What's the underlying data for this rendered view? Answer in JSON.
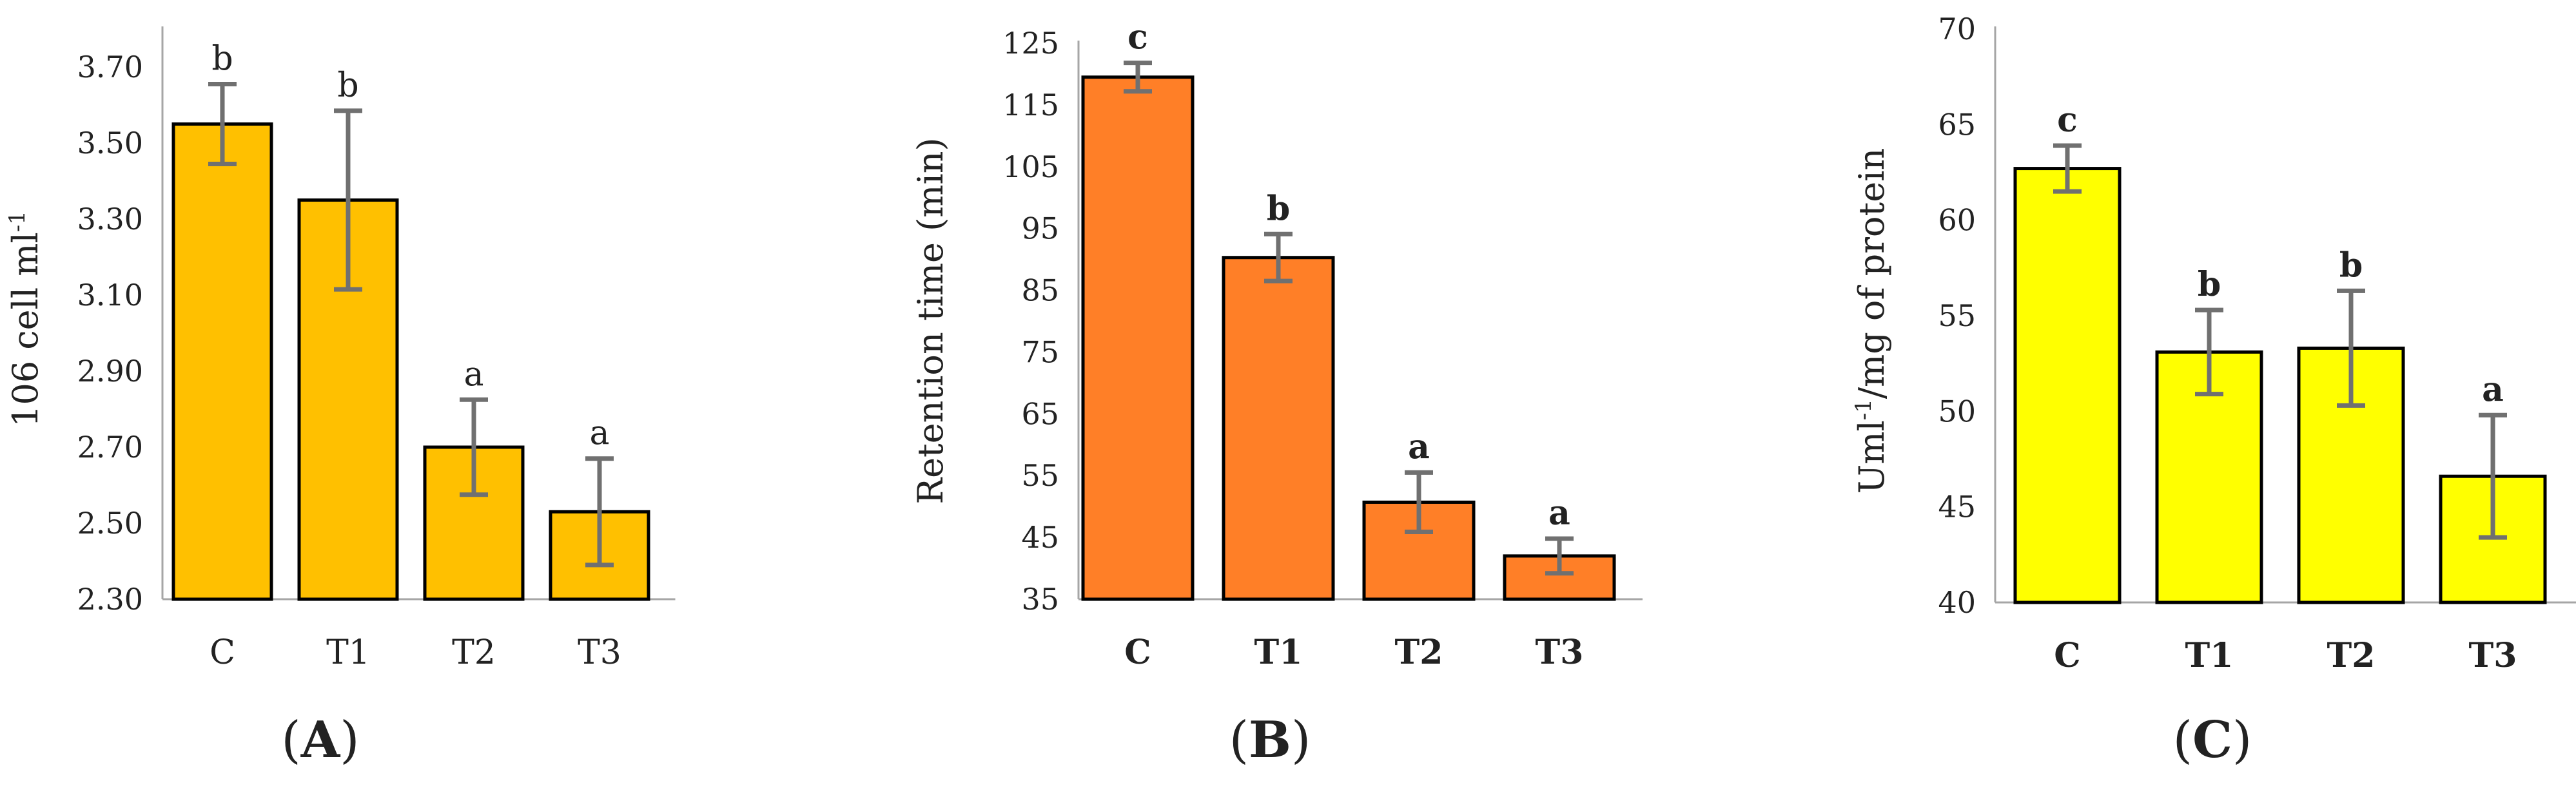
{
  "chart_data": [
    {
      "type": "bar",
      "panel_label": "A",
      "ylabel_main": "106 cell ml",
      "ylabel_sup": "-1",
      "categories": [
        "C",
        "T1",
        "T2",
        "T3"
      ],
      "values": [
        3.55,
        3.35,
        2.7,
        2.53
      ],
      "error": [
        0.105,
        0.235,
        0.125,
        0.14
      ],
      "significance": [
        "b",
        "b",
        "a",
        "a"
      ],
      "ylim": [
        2.3,
        3.8
      ],
      "yticks": [
        "2.30",
        "2.50",
        "2.70",
        "2.90",
        "3.10",
        "3.30",
        "3.50",
        "3.70"
      ],
      "bar_color": "#FFC000",
      "grid": false
    },
    {
      "type": "bar",
      "panel_label": "B",
      "ylabel_main": "Retention time (min)",
      "ylabel_sup": "",
      "categories": [
        "C",
        "T1",
        "T2",
        "T3"
      ],
      "values": [
        119.5,
        90.3,
        50.7,
        42.0
      ],
      "error": [
        2.3,
        3.8,
        4.8,
        2.8
      ],
      "significance": [
        "c",
        "b",
        "a",
        "a"
      ],
      "ylim": [
        35,
        125
      ],
      "yticks": [
        "35",
        "45",
        "55",
        "65",
        "75",
        "85",
        "95",
        "105",
        "115",
        "125"
      ],
      "bar_color": "#FF7F27",
      "grid": false
    },
    {
      "type": "bar",
      "panel_label": "C",
      "ylabel_main": "Uml",
      "ylabel_sup": "-1",
      "ylabel_rest": "/mg of protein",
      "categories": [
        "C",
        "T1",
        "T2",
        "T3"
      ],
      "values": [
        62.7,
        53.1,
        53.3,
        46.6
      ],
      "error": [
        1.2,
        2.2,
        3.0,
        3.2
      ],
      "significance": [
        "c",
        "b",
        "b",
        "a"
      ],
      "ylim": [
        40,
        70
      ],
      "yticks": [
        "40",
        "45",
        "50",
        "55",
        "60",
        "65",
        "70"
      ],
      "bar_color": "#FFFF00",
      "grid": false
    }
  ]
}
